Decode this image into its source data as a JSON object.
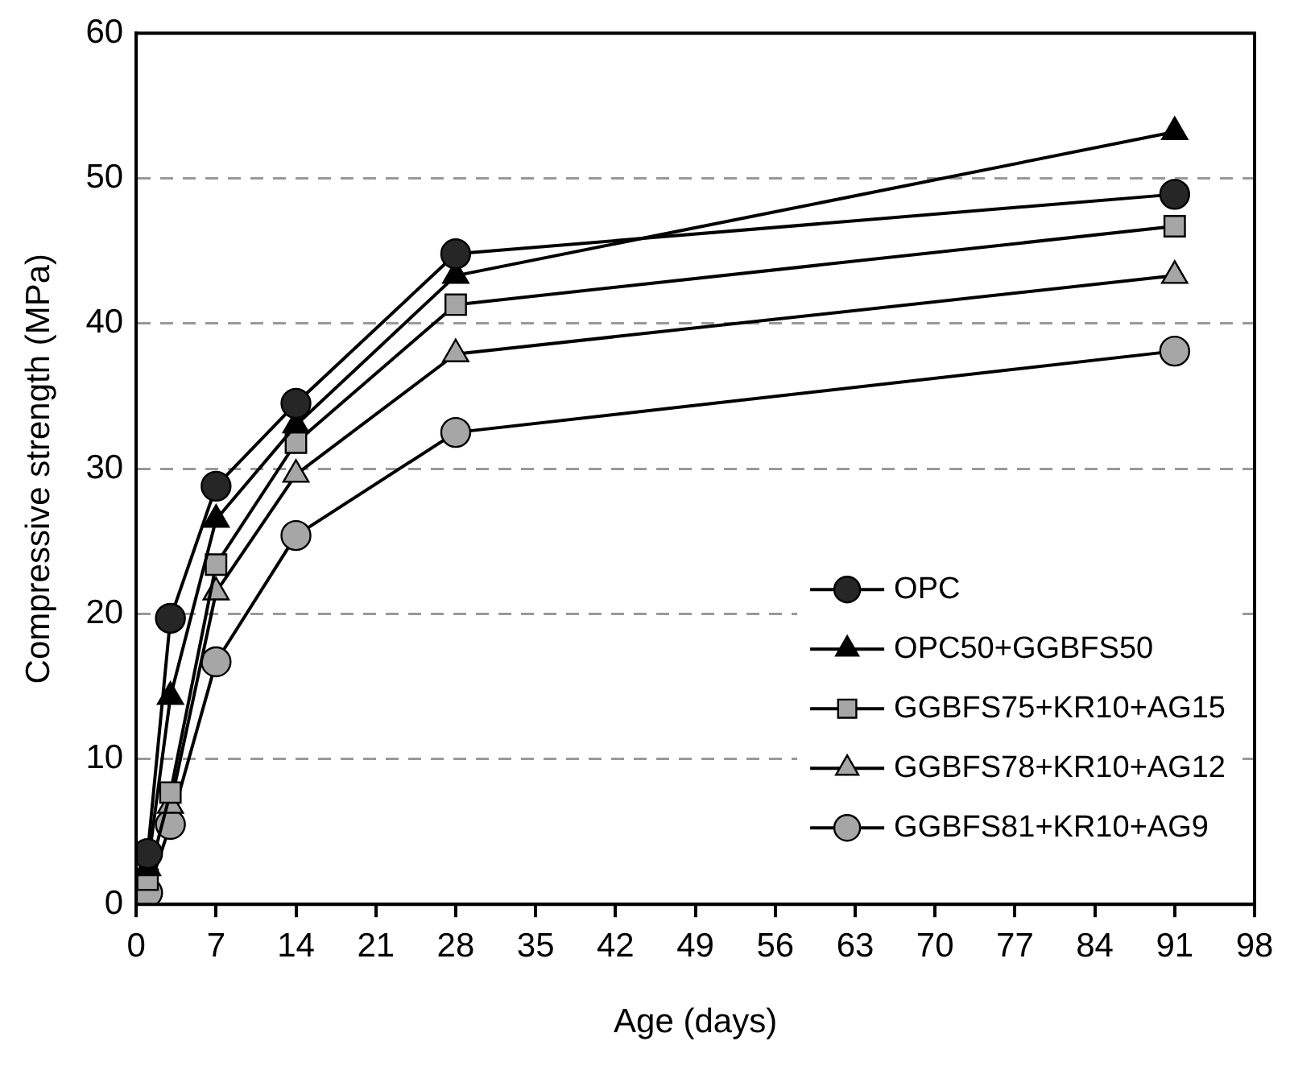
{
  "chart_data": {
    "type": "line",
    "xlabel": "Age (days)",
    "ylabel": "Compressive strength (MPa)",
    "x": [
      1,
      3,
      7,
      14,
      28,
      91
    ],
    "xlim": [
      0,
      98
    ],
    "xticks": [
      0,
      7,
      14,
      21,
      28,
      35,
      42,
      49,
      56,
      63,
      70,
      77,
      84,
      91,
      98
    ],
    "ylim": [
      0,
      60
    ],
    "yticks": [
      0,
      10,
      20,
      30,
      40,
      50,
      60
    ],
    "grid": "y",
    "legend": "bottom right",
    "line_style": "solid",
    "series": [
      {
        "name": "OPC",
        "color": "#262626",
        "marker": "circle",
        "values": [
          3.5,
          19.7,
          28.8,
          34.5,
          44.8,
          48.9
        ]
      },
      {
        "name": "OPC50+GGBFS50",
        "color": "#000000",
        "marker": "triangle",
        "values": [
          2.5,
          14.3,
          26.5,
          33,
          43.3,
          53.2
        ]
      },
      {
        "name": "GGBFS75+KR10+AG15",
        "color": "#a6a6a6",
        "marker": "square",
        "values": [
          1.7,
          7.7,
          23.4,
          31.8,
          41.3,
          46.7
        ]
      },
      {
        "name": "GGBFS78+KR10+AG12",
        "color": "#a6a6a6",
        "marker": "triangle",
        "values": [
          null,
          6.8,
          21.5,
          29.6,
          37.9,
          43.3
        ]
      },
      {
        "name": "GGBFS81+KR10+AG9",
        "color": "#a6a6a6",
        "marker": "circle",
        "values": [
          0.8,
          5.5,
          16.7,
          25.4,
          32.5,
          38.1
        ]
      }
    ]
  }
}
